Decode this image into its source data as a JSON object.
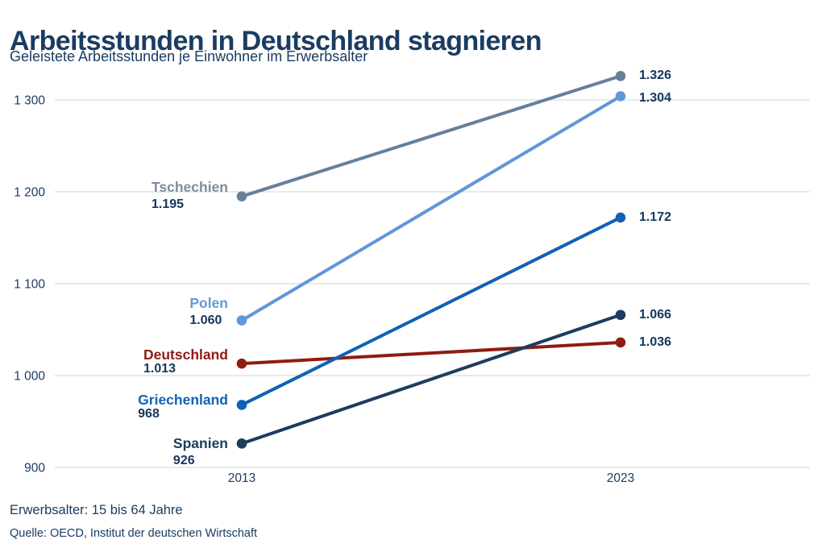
{
  "header": {
    "title": "Arbeitsstunden in Deutschland stagnieren",
    "subtitle": "Geleistete Arbeitsstunden je Einwohner im Erwerbsalter"
  },
  "footer": {
    "note": "Erwerbsalter: 15 bis 64 Jahre",
    "source": "Quelle: OECD, Institut der deutschen Wirtschaft"
  },
  "colors": {
    "text_navy": "#1b3c61",
    "value_label": "#16365c",
    "gridline": "#d8dde4",
    "background": "#ffffff"
  },
  "chart_data": {
    "type": "line",
    "x": [
      2013,
      2023
    ],
    "x_tick_labels": [
      "2013",
      "2023"
    ],
    "ylim": [
      900,
      1340
    ],
    "y_ticks": [
      900,
      1000,
      1100,
      1200,
      1300
    ],
    "y_tick_labels": [
      "900",
      "1 000",
      "1 100",
      "1 200",
      "1 300"
    ],
    "grid": "horizontal-only",
    "legend_position": "direct-labels-left",
    "series": [
      {
        "name": "Deutschland",
        "values": [
          1013,
          1036
        ],
        "value_labels": [
          "1.013",
          "1.036"
        ],
        "line_color": "#8e1c10",
        "label_color": "#8e1c10"
      },
      {
        "name": "Tschechien",
        "values": [
          1195,
          1326
        ],
        "value_labels": [
          "1.195",
          "1.326"
        ],
        "line_color": "#64809c",
        "label_color": "#7d8da1"
      },
      {
        "name": "Polen",
        "values": [
          1060,
          1304
        ],
        "value_labels": [
          "1.060",
          "1.304"
        ],
        "line_color": "#6097d9",
        "label_color": "#6598da"
      },
      {
        "name": "Griechenland",
        "values": [
          968,
          1172
        ],
        "value_labels": [
          "968",
          "1.172"
        ],
        "line_color": "#0f62b4",
        "label_color": "#0f62b4"
      },
      {
        "name": "Spanien",
        "values": [
          926,
          1066
        ],
        "value_labels": [
          "926",
          "1.066"
        ],
        "line_color": "#1d3c5f",
        "label_color": "#1d3c5f"
      }
    ]
  }
}
